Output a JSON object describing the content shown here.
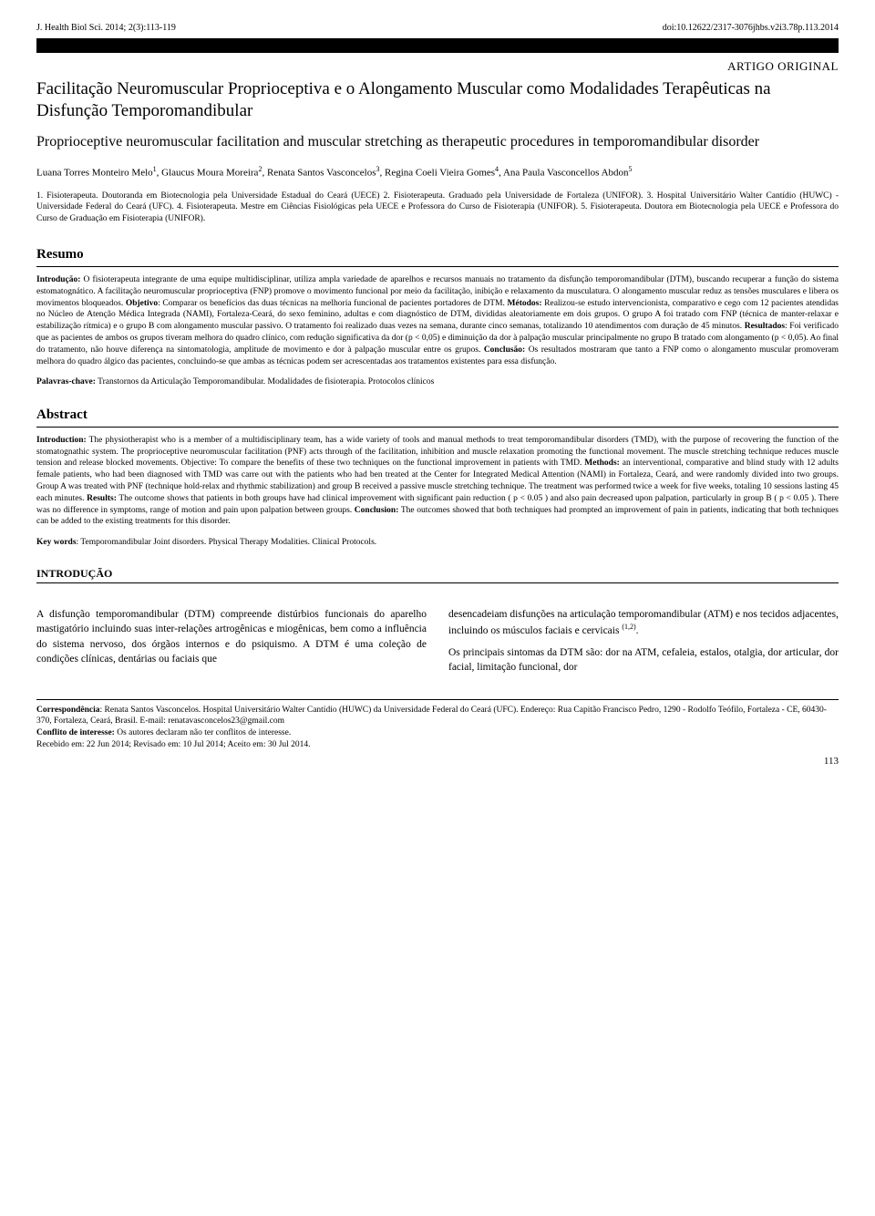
{
  "header": {
    "journal": "J. Health Biol Sci. 2014; 2(3):113-119",
    "doi": "doi:10.12622/2317-3076jhbs.v2i3.78p.113.2014"
  },
  "artigo_label": "ARTIGO ORIGINAL",
  "title_pt": "Facilitação Neuromuscular Proprioceptiva e o Alongamento Muscular como Modalidades Terapêuticas na Disfunção Temporomandibular",
  "title_en": "Proprioceptive neuromuscular facilitation and muscular stretching as therapeutic procedures in temporomandibular disorder",
  "authors_html": "Luana Torres Monteiro Melo<sup>1</sup>, Glaucus Moura Moreira<sup>2</sup>, Renata Santos Vasconcelos<sup>3</sup>, Regina Coeli Vieira Gomes<sup>4</sup>, Ana Paula Vasconcellos Abdon<sup>5</sup>",
  "affiliations": "1. Fisioterapeuta. Doutoranda em Biotecnologia pela Universidade Estadual do Ceará (UECE) 2. Fisioterapeuta. Graduado pela Universidade de Fortaleza (UNIFOR). 3. Hospital Universitário Walter Cantídio (HUWC) - Universidade Federal do Ceará (UFC). 4. Fisioterapeuta. Mestre em Ciências Fisiológicas pela UECE e Professora do Curso de Fisioterapia (UNIFOR). 5. Fisioterapeuta. Doutora em Biotecnologia pela UECE e Professora do Curso de Graduação em Fisioterapia (UNIFOR).",
  "resumo": {
    "heading": "Resumo",
    "intro_label": "Introdução:",
    "intro_text": " O fisioterapeuta integrante de uma equipe multidisciplinar, utiliza ampla variedade de aparelhos e recursos manuais no tratamento da disfunção temporomandibular (DTM), buscando recuperar a função do sistema estomatognático. A facilitação neuromuscular proprioceptiva (FNP) promove o movimento funcional por meio da facilitação, inibição e relaxamento da musculatura. O alongamento muscular reduz as tensões musculares e libera os movimentos bloqueados. ",
    "objetivo_label": "Objetivo",
    "objetivo_text": ": Comparar os benefícios das duas técnicas na melhoria funcional de pacientes portadores de DTM. ",
    "metodos_label": "Métodos:",
    "metodos_text": " Realizou-se estudo intervencionista, comparativo e cego com 12 pacientes atendidas no Núcleo de Atenção Médica Integrada (NAMI), Fortaleza-Ceará, do sexo feminino, adultas e com diagnóstico de DTM, divididas aleatoriamente em dois grupos. O grupo A foi tratado com FNP (técnica de manter-relaxar e estabilização rítmica) e o grupo B com alongamento muscular passivo. O tratamento foi realizado duas vezes na semana, durante cinco semanas, totalizando 10 atendimentos com duração de 45 minutos. ",
    "resultados_label": "Resultados",
    "resultados_text": ": Foi verificado que as pacientes de ambos os grupos tiveram melhora do quadro clínico, com redução significativa da dor (p < 0,05) e diminuição da dor à palpação muscular principalmente no grupo B tratado com alongamento (p < 0,05). Ao final do tratamento, não houve diferença na sintomatologia, amplitude de movimento e dor à palpação muscular entre os grupos. ",
    "conclusao_label": "Conclusão:",
    "conclusao_text": " Os resultados mostraram que tanto a FNP como o alongamento muscular promoveram melhora do quadro álgico das pacientes, concluindo-se que ambas as técnicas podem ser acrescentadas aos tratamentos existentes para essa disfunção.",
    "keywords_label": "Palavras-chave:",
    "keywords_text": " Transtornos da Articulação Temporomandibular. Modalidades de fisioterapia. Protocolos clínicos"
  },
  "abstract": {
    "heading": "Abstract",
    "intro_label": "Introduction:",
    "intro_text": " The physiotherapist who is a member of a multidisciplinary team, has a wide variety of tools and manual methods to treat temporomandibular disorders (TMD), with the purpose of recovering the function of the stomatognathic system. The proprioceptive neuromuscular facilitation (PNF) acts through of the facilitation, inhibition and muscle relaxation promoting the functional movement. The muscle stretching technique reduces muscle tension and release blocked movements. Objective: To compare the benefits of these two techniques on the functional improvement in patients with TMD. ",
    "methods_label": "Methods:",
    "methods_text": " an interventional, comparative and blind study with 12 adults female patients, who had been diagnosed with TMD was carre out with the patients who had ben treated at the Center for Integrated Medical Attention (NAMI) in  Fortaleza, Ceará, and were randomly divided into two groups. Group A was treated with PNF (technique hold-relax and rhythmic stabilization) and group B received a passive muscle stretching technique. The treatment was performed twice a week for five weeks, totaling 10 sessions lasting 45 each minutes. ",
    "results_label": "Results:",
    "results_text": " The outcome shows that patients in both groups have had clinical improvement with significant pain reduction ( p < 0.05 ) and also  pain decreased  upon palpation,  particularly in group B ( p < 0.05 ). There was no difference in symptoms, range of motion and pain upon palpation between groups. ",
    "conclusion_label": "Conclusion:",
    "conclusion_text": " The outcomes showed that both techniques had prompted an improvement of pain in patients, indicating that both techniques can be added to the existing treatments for this disorder.",
    "keywords_label": "Key words",
    "keywords_text": ": Temporomandibular Joint disorders. Physical Therapy Modalities. Clinical Protocols."
  },
  "introducao": {
    "heading": "INTRODUÇÃO",
    "col1_p1": "A disfunção temporomandibular (DTM) compreende distúrbios funcionais do aparelho mastigatório incluindo suas inter-relações artrogênicas e miogênicas, bem como a influência do sistema nervoso, dos órgãos internos e do psiquismo. A DTM é uma coleção de condições clínicas, dentárias ou faciais   que",
    "col2_p1_html": "desencadeiam disfunções na articulação temporomandibular (ATM) e nos tecidos adjacentes, incluindo os músculos faciais e cervicais <sup>(1,2)</sup>.",
    "col2_p2": "Os principais sintomas da DTM são: dor na ATM, cefaleia, estalos, otalgia, dor articular, dor facial, limitação funcional, dor"
  },
  "footer": {
    "corresp_label": "Correspondência",
    "corresp_text": ": Renata Santos Vasconcelos. Hospital Universitário Walter Cantídio (HUWC) da Universidade Federal do Ceará (UFC). Endereço: Rua Capitão Francisco Pedro, 1290 - Rodolfo Teófilo, Fortaleza - CE, 60430-370, Fortaleza, Ceará, Brasil. E-mail: renatavasconcelos23@gmail.com",
    "conflito_label": "Conflito de interesse:",
    "conflito_text": " Os autores declaram não ter conflitos de interesse.",
    "recebido": "Recebido em: 22 Jun 2014; Revisado em: 10 Jul 2014; Aceito em: 30 Jul 2014."
  },
  "page_number": "113"
}
